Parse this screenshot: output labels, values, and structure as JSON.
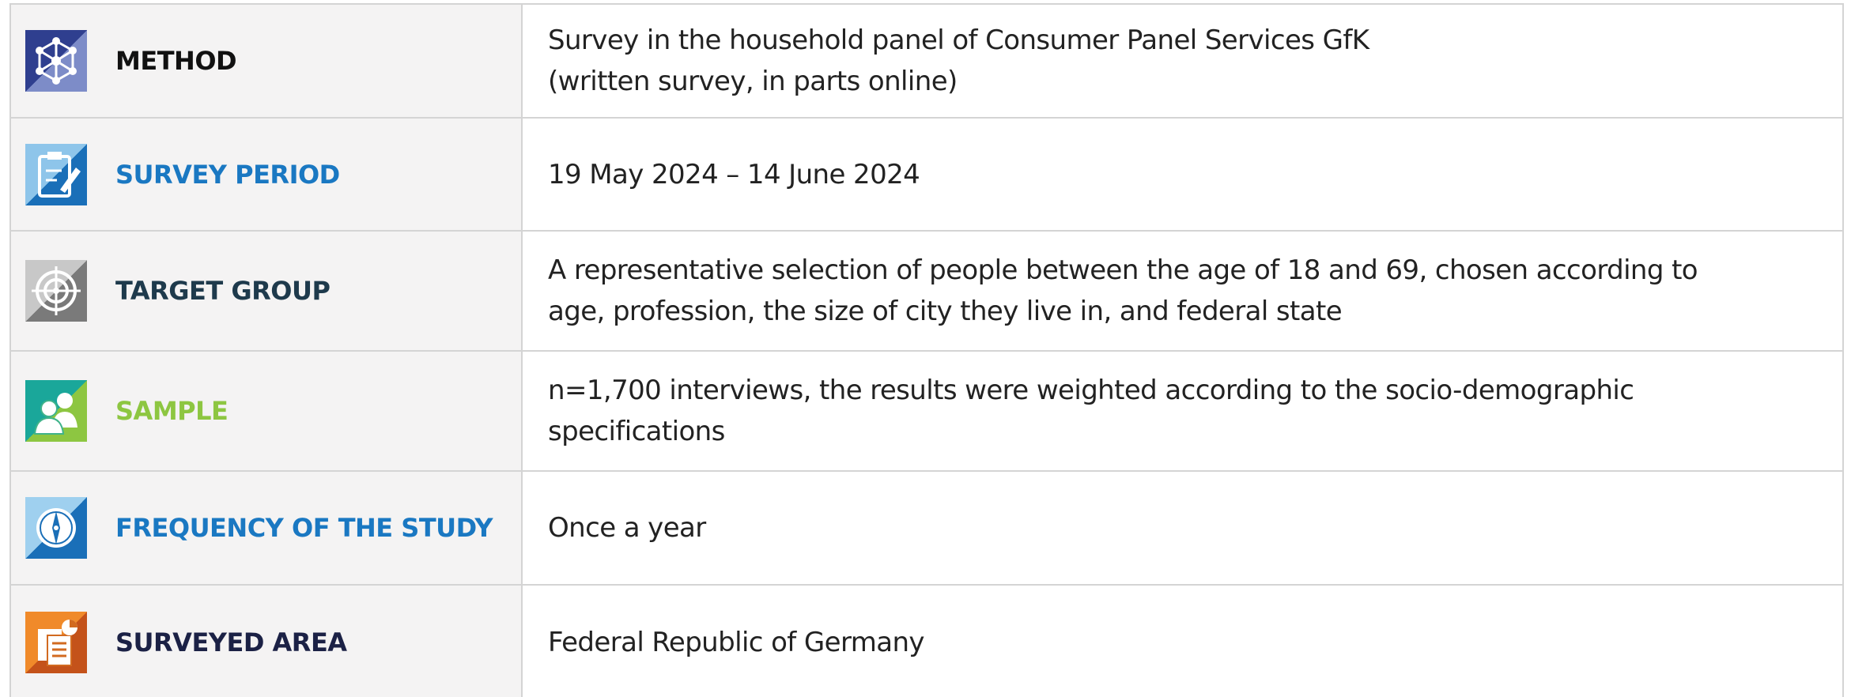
{
  "table": {
    "rows": [
      {
        "label": "METHOD",
        "value": [
          "Survey in the household panel of Consumer Panel Services GfK",
          "(written survey, in parts online)"
        ]
      },
      {
        "label": "SURVEY PERIOD",
        "value": [
          "19 May 2024 – 14 June 2024"
        ]
      },
      {
        "label": "TARGET GROUP",
        "value": [
          "A representative selection of people between the age of 18 and 69, chosen according to",
          "age, profession, the size of city they live in, and federal state"
        ]
      },
      {
        "label": "SAMPLE",
        "value": [
          "n=1,700 interviews, the results were weighted according to the socio-demographic",
          "specifications"
        ]
      },
      {
        "label": "FREQUENCY OF THE STUDY",
        "value": [
          "Once a year"
        ]
      },
      {
        "label": "SURVEYED AREA",
        "value": [
          "Federal Republic of Germany"
        ]
      }
    ]
  }
}
